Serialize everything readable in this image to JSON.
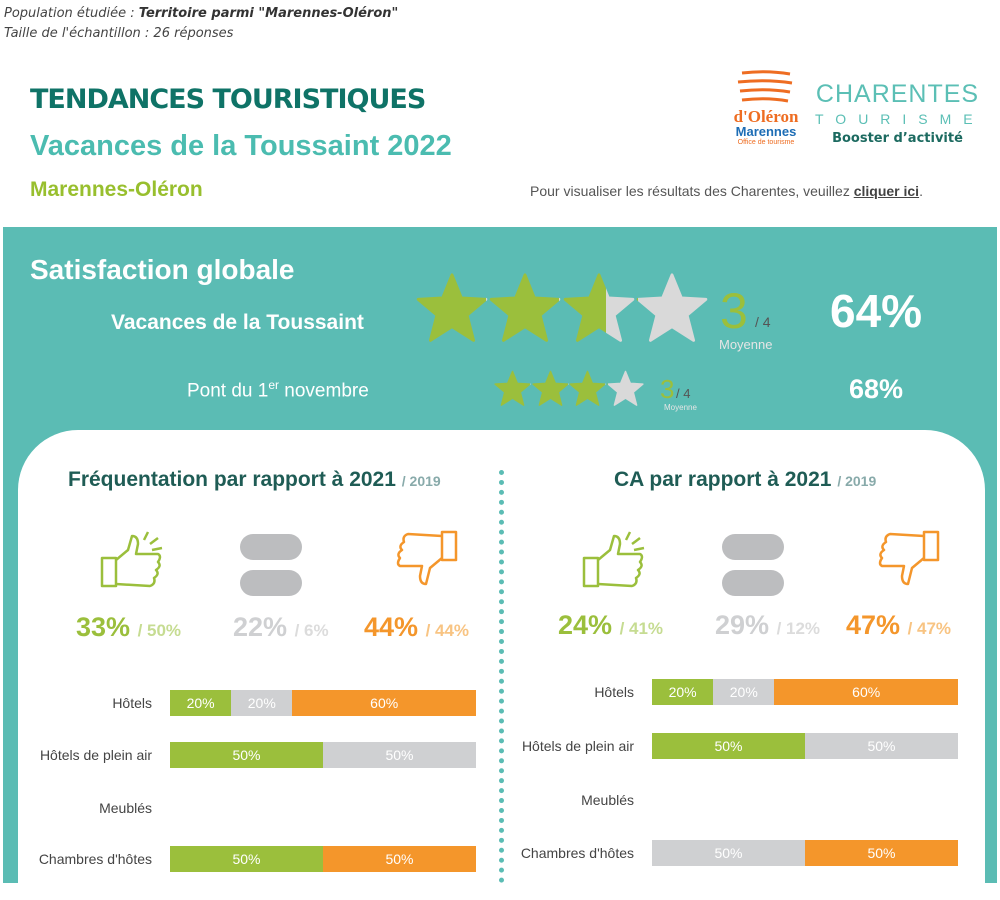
{
  "header": {
    "population_label": "Population étudiée : ",
    "population_value": "Territoire parmi \"Marennes-Oléron\"",
    "sample": "Taille de l'échantillon : 26 réponses",
    "title": "TENDANCES TOURISTIQUES",
    "subtitle": "Vacances de la Toussaint 2022",
    "territory": "Marennes-Oléron",
    "visit_text": "Pour visualiser les résultats des Charentes, veuillez ",
    "visit_link": "cliquer ici",
    "visit_end": "."
  },
  "logos": {
    "oleron": "île d'Oléron bassin de Marennes Office de tourisme",
    "charentes": "CHARENTES",
    "tourisme": "TOURISME",
    "booster": "Booster d’activité"
  },
  "satisfaction": {
    "title": "Satisfaction globale",
    "toussaint": {
      "label": "Vacances de la Toussaint",
      "score": "3",
      "max": "/ 4",
      "moy": "Moyenne",
      "rating": 2.6,
      "pct": "64%"
    },
    "pont": {
      "label_pre": "Pont du 1",
      "label_sup": "er",
      "label_post": " novembre",
      "score": "3",
      "max": "/ 4",
      "moy": "Moyenne",
      "rating": 3,
      "pct": "68%"
    }
  },
  "colors": {
    "green": "#9bbf3c",
    "grey": "#cfd0d2",
    "orange": "#f4962b"
  },
  "panels": [
    {
      "title": "Fréquentation par rapport à 2021",
      "sub": "/ 2019",
      "up": "33%",
      "up2": "/ 50%",
      "eq": "22%",
      "eq2": "/ 6%",
      "down": "44%",
      "down2": "/ 44%",
      "rows": [
        {
          "label": "Hôtels",
          "segs": [
            [
              "green",
              20,
              "20%"
            ],
            [
              "grey",
              20,
              "20%"
            ],
            [
              "orange",
              60,
              "60%"
            ]
          ]
        },
        {
          "label": "Hôtels de plein air",
          "segs": [
            [
              "green",
              50,
              "50%"
            ],
            [
              "grey",
              50,
              "50%"
            ]
          ]
        },
        {
          "label": "Meublés",
          "segs": []
        },
        {
          "label": "Chambres d'hôtes",
          "segs": [
            [
              "green",
              50,
              "50%"
            ],
            [
              "orange",
              50,
              "50%"
            ]
          ]
        }
      ]
    },
    {
      "title": "CA par rapport à 2021",
      "sub": "/ 2019",
      "up": "24%",
      "up2": "/ 41%",
      "eq": "29%",
      "eq2": "/ 12%",
      "down": "47%",
      "down2": "/ 47%",
      "rows": [
        {
          "label": "Hôtels",
          "segs": [
            [
              "green",
              20,
              "20%"
            ],
            [
              "grey",
              20,
              "20%"
            ],
            [
              "orange",
              60,
              "60%"
            ]
          ]
        },
        {
          "label": "Hôtels de plein air",
          "segs": [
            [
              "green",
              50,
              "50%"
            ],
            [
              "grey",
              50,
              "50%"
            ]
          ]
        },
        {
          "label": "Meublés",
          "segs": []
        },
        {
          "label": "Chambres d'hôtes",
          "segs": [
            [
              "grey",
              50,
              "50%"
            ],
            [
              "orange",
              50,
              "50%"
            ]
          ]
        }
      ]
    }
  ]
}
